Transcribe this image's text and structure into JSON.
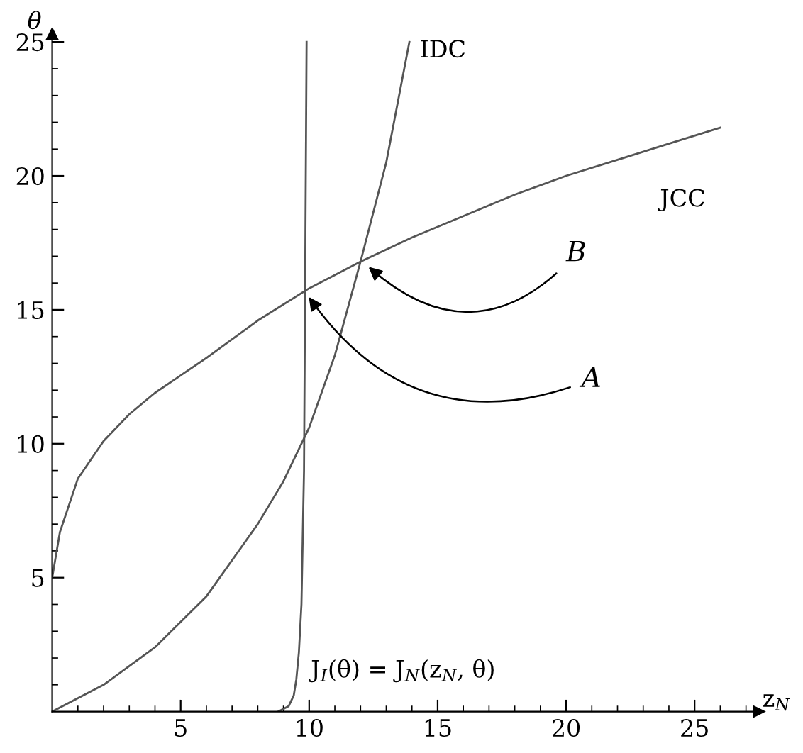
{
  "chart_data": {
    "type": "line",
    "xlabel": "z$_{N}$",
    "ylabel": "θ",
    "xlim": [
      0,
      27.5
    ],
    "ylim": [
      0,
      25.3
    ],
    "xticks": [
      {
        "value": 1,
        "label": null
      },
      {
        "value": 2,
        "label": null
      },
      {
        "value": 3,
        "label": null
      },
      {
        "value": 4,
        "label": null
      },
      5,
      {
        "value": 6,
        "label": null
      },
      {
        "value": 7,
        "label": null
      },
      {
        "value": 8,
        "label": null
      },
      {
        "value": 9,
        "label": null
      },
      10,
      {
        "value": 11,
        "label": null
      },
      {
        "value": 12,
        "label": null
      },
      {
        "value": 13,
        "label": null
      },
      {
        "value": 14,
        "label": null
      },
      15,
      {
        "value": 16,
        "label": null
      },
      {
        "value": 17,
        "label": null
      },
      {
        "value": 18,
        "label": null
      },
      {
        "value": 19,
        "label": null
      },
      20,
      {
        "value": 21,
        "label": null
      },
      {
        "value": 22,
        "label": null
      },
      {
        "value": 23,
        "label": null
      },
      {
        "value": 24,
        "label": null
      },
      25,
      {
        "value": 26,
        "label": null
      },
      {
        "value": 27,
        "label": null
      }
    ],
    "yticks": [
      {
        "value": 1,
        "label": null
      },
      {
        "value": 2,
        "label": null
      },
      {
        "value": 3,
        "label": null
      },
      {
        "value": 4,
        "label": null
      },
      5,
      {
        "value": 6,
        "label": null
      },
      {
        "value": 7,
        "label": null
      },
      {
        "value": 8,
        "label": null
      },
      {
        "value": 9,
        "label": null
      },
      10,
      {
        "value": 11,
        "label": null
      },
      {
        "value": 12,
        "label": null
      },
      {
        "value": 13,
        "label": null
      },
      {
        "value": 14,
        "label": null
      },
      15,
      {
        "value": 16,
        "label": null
      },
      {
        "value": 17,
        "label": null
      },
      {
        "value": 18,
        "label": null
      },
      {
        "value": 19,
        "label": null
      },
      20,
      {
        "value": 21,
        "label": null
      },
      {
        "value": 22,
        "label": null
      },
      {
        "value": 23,
        "label": null
      },
      {
        "value": 24,
        "label": null
      },
      25
    ],
    "grid": false,
    "marker": "none",
    "line_style": "solid",
    "series": [
      {
        "color": "#555555",
        "x": [
          0,
          0.3,
          1,
          2,
          3,
          4,
          6,
          8,
          10,
          12,
          14,
          16,
          18,
          20,
          22,
          24,
          26
        ],
        "values": [
          5,
          6.7,
          8.7,
          10.1,
          11.1,
          11.9,
          13.2,
          14.6,
          15.8,
          16.8,
          17.7,
          18.5,
          19.3,
          20.0,
          20.6,
          21.2,
          21.8
        ]
      },
      {
        "color": "#555555",
        "x": [
          0,
          2,
          4,
          6,
          8,
          9,
          10,
          11,
          12,
          13,
          13.9
        ],
        "values": [
          0,
          1,
          2.4,
          4.3,
          7,
          8.6,
          10.6,
          13.3,
          16.8,
          20.5,
          25
        ]
      },
      {
        "color": "#555555",
        "x": [
          8.8,
          9.2,
          9.4,
          9.5,
          9.6,
          9.7,
          9.8,
          9.9
        ],
        "values": [
          0,
          0.2,
          0.6,
          1.2,
          2.2,
          4,
          9,
          25
        ]
      }
    ],
    "annotations": [
      "IDC",
      "JCC",
      {
        "text": "B",
        "x": 12.2,
        "y": 16.7
      },
      {
        "text": "A",
        "x": 9.9,
        "y": 15.6
      },
      "J$_{I}$(θ) = J$_{N}$(z$_{N}$, θ)"
    ]
  }
}
